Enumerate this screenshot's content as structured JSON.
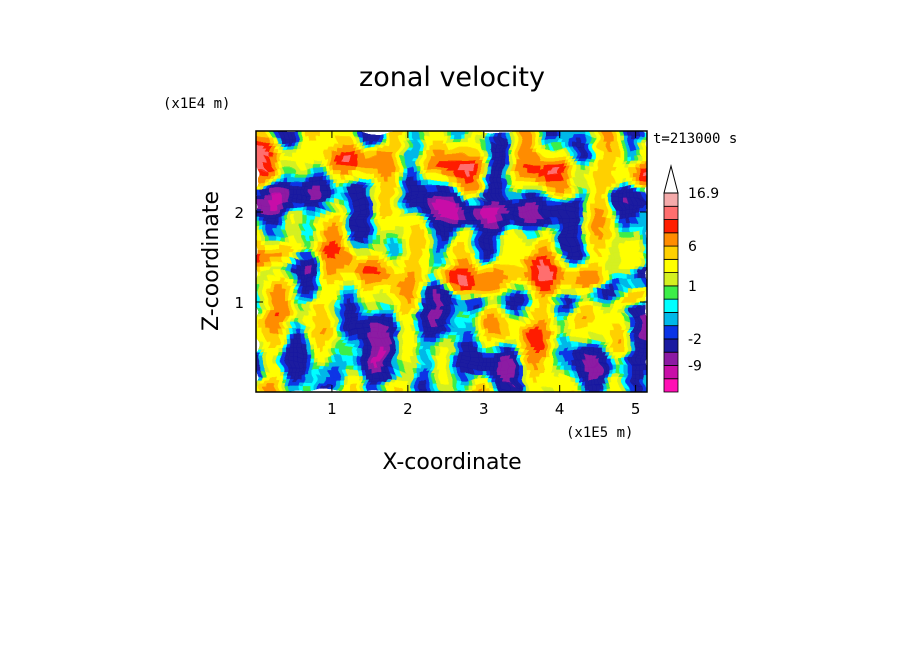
{
  "chart_data": {
    "type": "heatmap",
    "title": "zonal velocity",
    "xlabel": "X-coordinate",
    "ylabel": "Z-coordinate",
    "x_scale_label": "(x1E5 m)",
    "y_scale_label": "(x1E4 m)",
    "time_label": "t=213000 s",
    "xlim": [
      0,
      5.15
    ],
    "ylim": [
      0,
      2.9
    ],
    "x_ticks": [
      1,
      2,
      3,
      4,
      5
    ],
    "y_ticks": [
      1,
      2
    ],
    "colorbar": {
      "levels": [
        -16.9,
        -13,
        -9,
        -6,
        -2,
        -1,
        0,
        0.5,
        1,
        2,
        4,
        6,
        9,
        12,
        16.9
      ],
      "labels": [
        "16.9",
        "6",
        "1",
        "-2",
        "-9"
      ],
      "colors": [
        "#ff10b4",
        "#c80fa8",
        "#8c1aa3",
        "#1a1aa0",
        "#0a34e6",
        "#00b8e8",
        "#00ffff",
        "#3cee48",
        "#d4f020",
        "#ffff00",
        "#ffd000",
        "#ff8c00",
        "#ff1e00",
        "#ff6e6e",
        "#f4aaaa"
      ]
    }
  }
}
